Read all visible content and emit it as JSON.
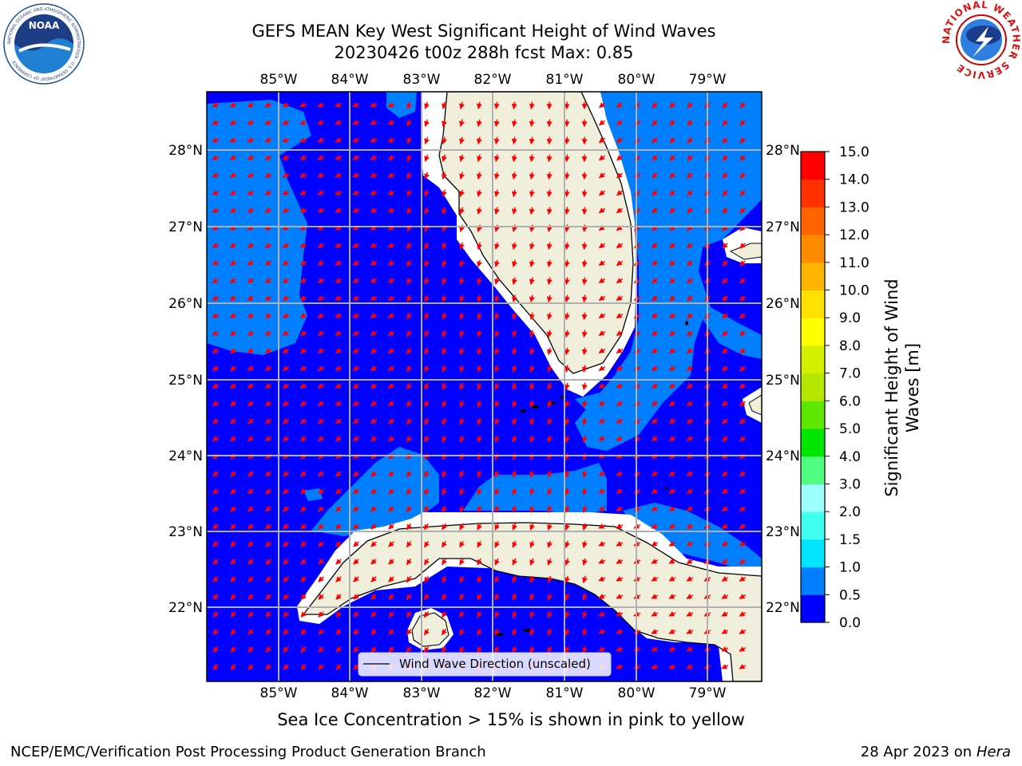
{
  "header": {
    "title_line1": "GEFS MEAN Key West Significant Height of Wind Waves",
    "title_line2": "20230426 t00z 288h fcst   Max: 0.85"
  },
  "map": {
    "lon_ticks": [
      "85°W",
      "84°W",
      "83°W",
      "82°W",
      "81°W",
      "80°W",
      "79°W"
    ],
    "lat_ticks": [
      "28°N",
      "27°N",
      "26°N",
      "25°N",
      "24°N",
      "23°N",
      "22°N"
    ],
    "legend_label": "Wind Wave Direction (unscaled)",
    "colors": {
      "level_0_0_5": "#0000ff",
      "level_0_5_1_0": "#0080ff",
      "land": "#efefdc",
      "arrow": "#ff0000",
      "grid": "#b0b0b0"
    }
  },
  "colorbar": {
    "label_line1": "Significant Height of Wind",
    "label_line2": "Waves [m]",
    "ticks": [
      "0.0",
      "0.5",
      "1.0",
      "1.5",
      "2.0",
      "3.0",
      "4.0",
      "5.0",
      "6.0",
      "7.0",
      "8.0",
      "9.0",
      "10.0",
      "11.0",
      "12.0",
      "13.0",
      "14.0",
      "15.0"
    ],
    "colors": [
      "#0000ff",
      "#0080ff",
      "#00e4ff",
      "#40ffee",
      "#9effff",
      "#50ff80",
      "#00e600",
      "#5fe600",
      "#b4e600",
      "#d2f000",
      "#ffff00",
      "#ffe100",
      "#ffb400",
      "#ff8c00",
      "#ff6400",
      "#ff3200",
      "#ff0000"
    ]
  },
  "footer": {
    "note": "Sea Ice Concentration > 15% is shown in pink to yellow",
    "left": "NCEP/EMC/Verification Post Processing Product Generation Branch",
    "right_date": "28 Apr 2023 on",
    "right_host": "Hera"
  },
  "logos": {
    "noaa_text": "NOAA",
    "noaa_ring": "NATIONAL OCEANIC AND ATMOSPHERIC ADMINISTRATION · U.S. DEPARTMENT OF COMMERCE",
    "nws_ring": "NATIONAL WEATHER SERVICE"
  }
}
